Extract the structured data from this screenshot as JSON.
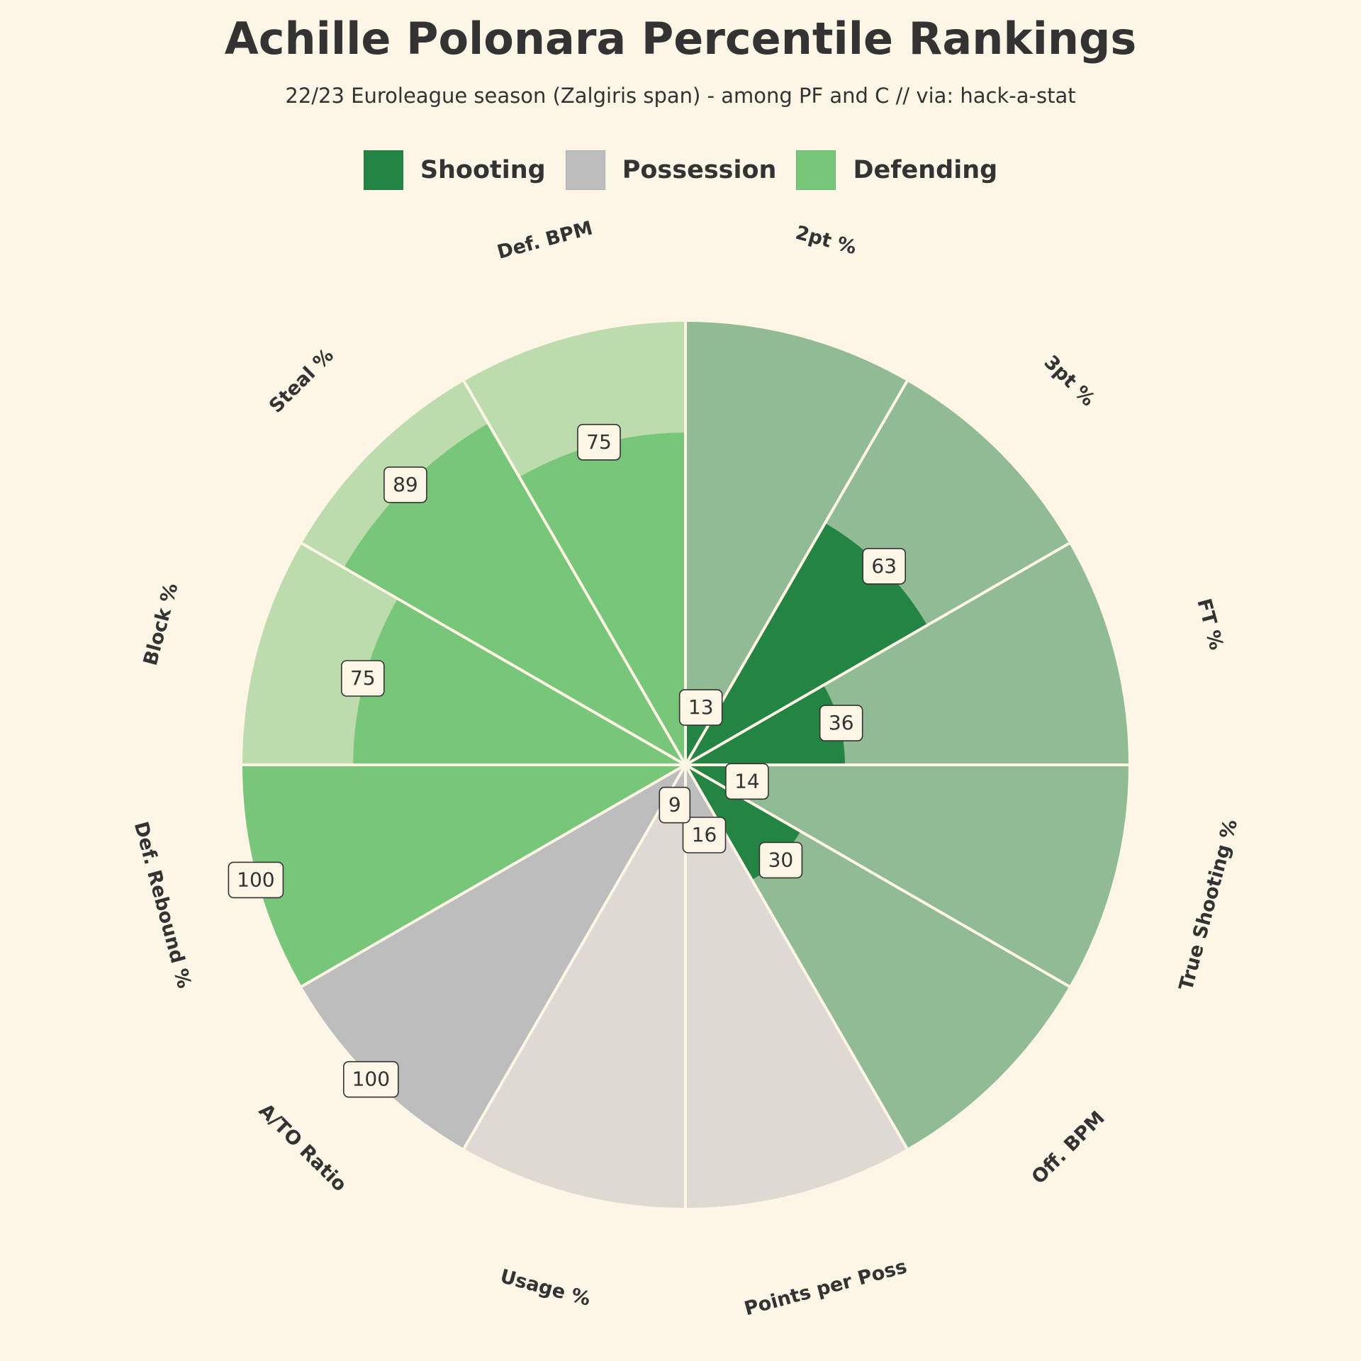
{
  "title": "Achille Polonara Percentile Rankings",
  "subtitle": "22/23 Euroleague season (Zalgiris span) - among PF and C // via: hack-a-stat",
  "colors": {
    "background": "#fdf5e6",
    "text": "#333333",
    "divider": "#fdf5e6",
    "label_box_fill": "#fdf5e6",
    "label_box_stroke": "#333333"
  },
  "legend": [
    {
      "label": "Shooting",
      "color": "#238443",
      "background_color": "#91bb94"
    },
    {
      "label": "Possession",
      "color": "#bdbdbd",
      "background_color": "#dedad3"
    },
    {
      "label": "Defending",
      "color": "#78c679",
      "background_color": "#bcdcae"
    }
  ],
  "chart_data": {
    "type": "polar-bar",
    "title": "Achille Polonara Percentile Rankings",
    "subtitle": "22/23 Euroleague season (Zalgiris span) - among PF and C // via: hack-a-stat",
    "rlim": [
      0,
      100
    ],
    "direction": "clockwise",
    "start": "top",
    "categories": [
      "2pt %",
      "3pt %",
      "FT %",
      "True Shooting %",
      "Off. BPM",
      "Points per Poss",
      "Usage %",
      "A/TO Ratio",
      "Def. Rebound %",
      "Block %",
      "Steal %",
      "Def. BPM"
    ],
    "values": [
      13,
      63,
      36,
      14,
      30,
      16,
      9,
      100,
      100,
      75,
      89,
      75
    ],
    "groups": [
      "Shooting",
      "Shooting",
      "Shooting",
      "Shooting",
      "Shooting",
      "Possession",
      "Possession",
      "Possession",
      "Defending",
      "Defending",
      "Defending",
      "Defending"
    ]
  }
}
